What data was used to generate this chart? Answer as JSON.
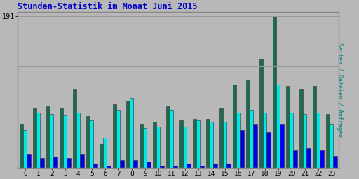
{
  "title": "Stunden-Statistik im Monat Juni 2015",
  "ylabel": "Seiten / Dateien / Anfragen",
  "xlabel_ticks": [
    0,
    1,
    2,
    3,
    4,
    5,
    6,
    7,
    8,
    9,
    10,
    11,
    12,
    13,
    14,
    15,
    16,
    17,
    18,
    19,
    20,
    21,
    22,
    23
  ],
  "ytick_label": "191",
  "ytick_value": 191,
  "title_color": "#0000cc",
  "ylabel_color": "#008080",
  "background_color": "#b8b8b8",
  "plot_bg_color": "#b8b8b8",
  "bar_width": 0.28,
  "colors": {
    "green": "#1a6b50",
    "cyan": "#00e8e8",
    "blue": "#0000ee"
  },
  "green_vals": [
    55,
    75,
    78,
    75,
    100,
    65,
    30,
    80,
    85,
    55,
    58,
    78,
    60,
    62,
    62,
    75,
    105,
    110,
    138,
    191,
    103,
    100,
    103,
    68
  ],
  "cyan_vals": [
    48,
    70,
    68,
    66,
    70,
    60,
    38,
    72,
    88,
    50,
    52,
    72,
    52,
    60,
    58,
    58,
    70,
    72,
    70,
    105,
    70,
    68,
    70,
    55
  ],
  "blue_vals": [
    18,
    12,
    14,
    12,
    18,
    5,
    3,
    10,
    10,
    8,
    3,
    3,
    5,
    3,
    5,
    5,
    48,
    55,
    45,
    55,
    22,
    25,
    22,
    15
  ]
}
